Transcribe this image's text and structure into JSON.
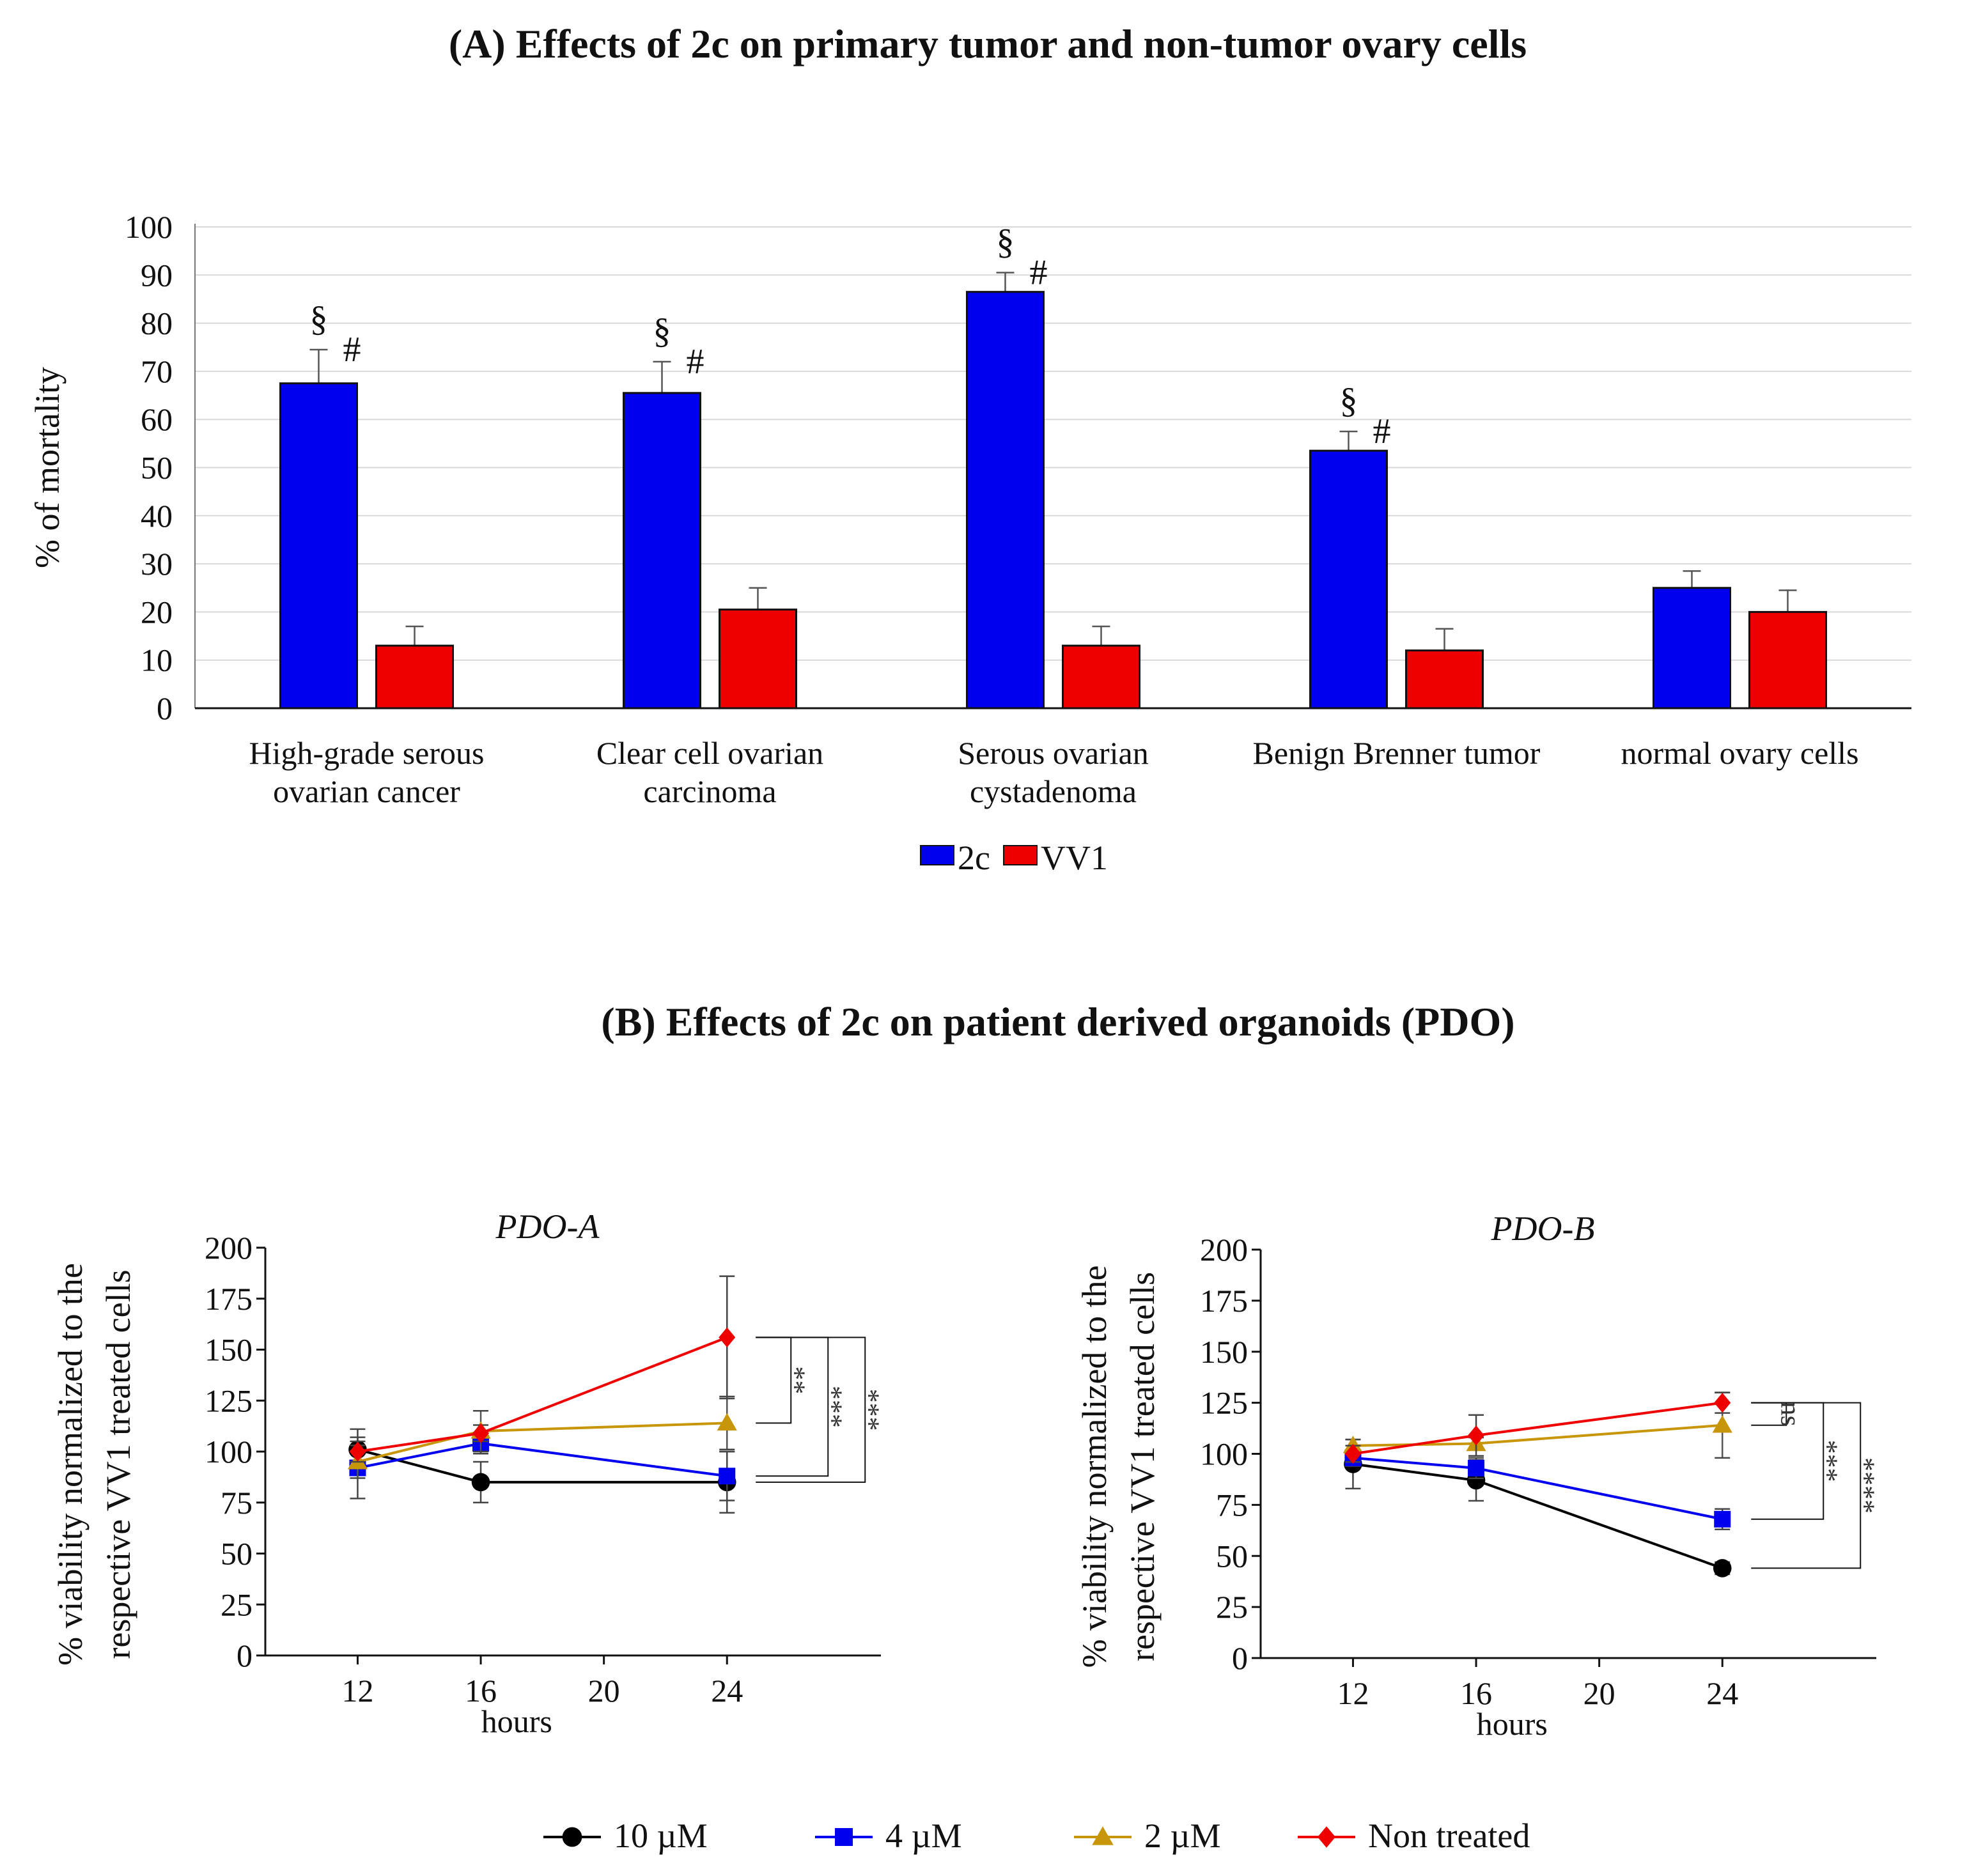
{
  "chart_data": [
    {
      "type": "bar",
      "title": "(A) Effects of 2c on primary tumor and non-tumor ovary cells",
      "ylabel": "% of mortality",
      "ylim": [
        0,
        100
      ],
      "yticks": [
        "0",
        "10",
        "20",
        "30",
        "40",
        "50",
        "60",
        "70",
        "80",
        "90",
        "100"
      ],
      "grid": true,
      "categories": [
        [
          "High-grade serous",
          "ovarian cancer"
        ],
        [
          "Clear cell ovarian",
          "carcinoma"
        ],
        [
          "Serous ovarian",
          "cystadenoma"
        ],
        [
          "Benign Brenner tumor"
        ],
        [
          "normal ovary cells"
        ]
      ],
      "series": [
        {
          "name": "2c",
          "color": "#0000ee",
          "values": [
            67.5,
            65.5,
            86.5,
            53.5,
            25
          ],
          "errors": [
            7,
            6.5,
            4,
            4,
            3.5
          ]
        },
        {
          "name": "VV1",
          "color": "#ee0000",
          "values": [
            13,
            20.5,
            13,
            12,
            20
          ],
          "errors": [
            4,
            4.5,
            4,
            4.5,
            4.5
          ]
        }
      ],
      "annotations": [
        {
          "category": 0,
          "symbols": [
            "§",
            "#"
          ]
        },
        {
          "category": 1,
          "symbols": [
            "§",
            "#"
          ]
        },
        {
          "category": 2,
          "symbols": [
            "§",
            "#"
          ]
        },
        {
          "category": 3,
          "symbols": [
            "§",
            "#"
          ]
        }
      ],
      "legend": "bottom-center"
    },
    {
      "type": "line",
      "title": "PDO-A",
      "ylabel": [
        "% viability normalized to the",
        "respective VV1 treated cells"
      ],
      "xlabel": "hours",
      "ylim": [
        0,
        200
      ],
      "xlim": [
        9,
        29
      ],
      "xticks": [
        12,
        16,
        20,
        24
      ],
      "yticks": [
        0,
        25,
        50,
        75,
        100,
        125,
        150,
        175,
        200
      ],
      "x": [
        12,
        16,
        24
      ],
      "series": [
        {
          "name": "10 µM",
          "values": [
            101,
            85,
            85
          ],
          "errors": [
            10,
            10,
            15
          ]
        },
        {
          "name": "4 µM",
          "values": [
            92,
            104,
            88
          ],
          "errors": [
            15,
            5,
            12
          ]
        },
        {
          "name": "2 µM",
          "values": [
            95,
            110,
            114
          ],
          "errors": [
            8,
            10,
            13
          ]
        },
        {
          "name": "Non treated",
          "values": [
            100,
            109,
            156
          ],
          "errors": [
            5,
            4,
            30
          ]
        }
      ],
      "significance": [
        "**",
        "***",
        "***"
      ]
    },
    {
      "type": "line",
      "title": "PDO-B",
      "ylabel": [
        "% viability normalized to the",
        "respective VV1 treated cells"
      ],
      "xlabel": "hours",
      "ylim": [
        0,
        200
      ],
      "xlim": [
        9,
        29
      ],
      "xticks": [
        12,
        16,
        20,
        24
      ],
      "yticks": [
        0,
        25,
        50,
        75,
        100,
        125,
        150,
        175,
        200
      ],
      "x": [
        12,
        16,
        24
      ],
      "series": [
        {
          "name": "10 µM",
          "values": [
            95,
            87,
            44
          ],
          "errors": [
            12,
            10,
            3
          ]
        },
        {
          "name": "4 µM",
          "values": [
            98,
            93,
            68
          ],
          "errors": [
            4,
            5,
            5
          ]
        },
        {
          "name": "2 µM",
          "values": [
            104,
            105,
            114
          ],
          "errors": [
            3,
            3,
            16
          ]
        },
        {
          "name": "Non treated",
          "values": [
            100,
            109,
            125
          ],
          "errors": [
            4,
            10,
            5
          ]
        }
      ],
      "significance": [
        "ns",
        "***",
        "****"
      ]
    }
  ],
  "line_legend": [
    {
      "name": "10 µM",
      "color": "#000000",
      "marker": "circle"
    },
    {
      "name": "4 µM",
      "color": "#0000ee",
      "marker": "square"
    },
    {
      "name": "2 µM",
      "color": "#c8960a",
      "marker": "triangle"
    },
    {
      "name": "Non treated",
      "color": "#ee0000",
      "marker": "diamond"
    }
  ],
  "panel_b_title": "(B) Effects of 2c on patient derived organoids (PDO)"
}
